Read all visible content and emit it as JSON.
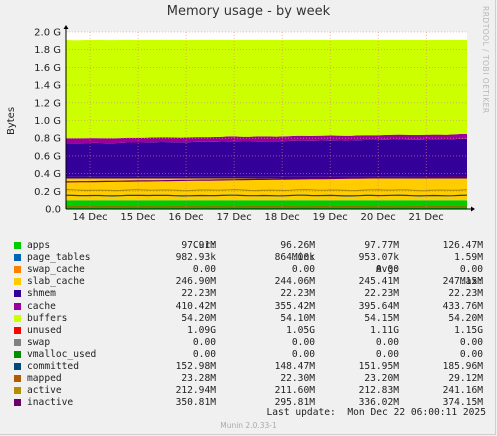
{
  "chart_data": {
    "type": "area",
    "title": "Memory usage - by week",
    "ylabel": "Bytes",
    "side_credit": "RRDTOOL / TOBI OETIKER",
    "ylim": [
      0,
      2.0
    ],
    "y_unit": "G",
    "yticks": [
      {
        "value": 0.0,
        "label": "0.0"
      },
      {
        "value": 0.2,
        "label": "0.2 G"
      },
      {
        "value": 0.4,
        "label": "0.4 G"
      },
      {
        "value": 0.6,
        "label": "0.6 G"
      },
      {
        "value": 0.8,
        "label": "0.8 G"
      },
      {
        "value": 1.0,
        "label": "1.0 G"
      },
      {
        "value": 1.2,
        "label": "1.2 G"
      },
      {
        "value": 1.4,
        "label": "1.4 G"
      },
      {
        "value": 1.6,
        "label": "1.6 G"
      },
      {
        "value": 1.8,
        "label": "1.8 G"
      },
      {
        "value": 2.0,
        "label": "2.0 G"
      }
    ],
    "xticks": [
      "14 Dec",
      "15 Dec",
      "16 Dec",
      "17 Dec",
      "18 Dec",
      "19 Dec",
      "20 Dec",
      "21 Dec"
    ],
    "x_range_days": [
      13.5,
      21.85
    ],
    "x_tick_days": [
      14,
      15,
      16,
      17,
      18,
      19,
      20,
      21
    ],
    "grid": true,
    "columns": [
      "Cur:",
      "Min:",
      "Avg:",
      "Max:"
    ],
    "series": [
      {
        "name": "apps",
        "color": "#00cc00",
        "kind": "area",
        "avg_g": 0.0978,
        "cur": "97.91M",
        "min": "96.26M",
        "avg": "97.77M",
        "max": "126.47M"
      },
      {
        "name": "page_tables",
        "color": "#0066b3",
        "kind": "area",
        "avg_g": 0.00095,
        "cur": "982.93k",
        "min": "864.00k",
        "avg": "953.07k",
        "max": "1.59M"
      },
      {
        "name": "swap_cache",
        "color": "#ff8000",
        "kind": "area",
        "avg_g": 0.0,
        "cur": "0.00",
        "min": "0.00",
        "avg": "0.00",
        "max": "0.00"
      },
      {
        "name": "slab_cache",
        "color": "#ffcc00",
        "kind": "area",
        "avg_g": 0.2454,
        "cur": "246.90M",
        "min": "244.06M",
        "avg": "245.41M",
        "max": "247.15M"
      },
      {
        "name": "shmem",
        "color": "#330099",
        "kind": "area",
        "avg_g": 0.0222,
        "cur": "22.23M",
        "min": "22.23M",
        "avg": "22.23M",
        "max": "22.23M"
      },
      {
        "name": "cache",
        "color": "#990099",
        "kind": "area",
        "avg_g": 0.3956,
        "cur": "410.42M",
        "min": "355.42M",
        "avg": "395.64M",
        "max": "433.76M"
      },
      {
        "name": "buffers",
        "color": "#ccff00",
        "kind": "area",
        "avg_g": 0.0542,
        "cur": "54.20M",
        "min": "54.10M",
        "avg": "54.15M",
        "max": "54.20M"
      },
      {
        "name": "unused",
        "color": "#ff0000",
        "kind": "area",
        "avg_g": 1.11,
        "cur": "1.09G",
        "min": "1.05G",
        "avg": "1.11G",
        "max": "1.15G"
      },
      {
        "name": "swap",
        "color": "#808080",
        "kind": "area",
        "avg_g": 0.0,
        "cur": "0.00",
        "min": "0.00",
        "avg": "0.00",
        "max": "0.00"
      },
      {
        "name": "vmalloc_used",
        "color": "#008f00",
        "kind": "area",
        "avg_g": 0.0,
        "cur": "0.00",
        "min": "0.00",
        "avg": "0.00",
        "max": "0.00"
      },
      {
        "name": "committed",
        "color": "#00487d",
        "kind": "line",
        "avg_g": 0.152,
        "cur": "152.98M",
        "min": "148.47M",
        "avg": "151.95M",
        "max": "185.96M"
      },
      {
        "name": "mapped",
        "color": "#b35a00",
        "kind": "line",
        "avg_g": 0.0232,
        "cur": "23.28M",
        "min": "22.30M",
        "avg": "23.20M",
        "max": "29.12M"
      },
      {
        "name": "active",
        "color": "#b38f00",
        "kind": "line",
        "avg_g": 0.2128,
        "cur": "212.94M",
        "min": "211.60M",
        "avg": "212.83M",
        "max": "241.16M"
      },
      {
        "name": "inactive",
        "color": "#6b006b",
        "kind": "line",
        "avg_g": 0.336,
        "cur": "350.81M",
        "min": "295.81M",
        "avg": "336.02M",
        "max": "374.15M"
      }
    ]
  },
  "last_update": "Last update:  Mon Dec 22 06:00:11 2025",
  "footer": "Munin 2.0.33-1"
}
